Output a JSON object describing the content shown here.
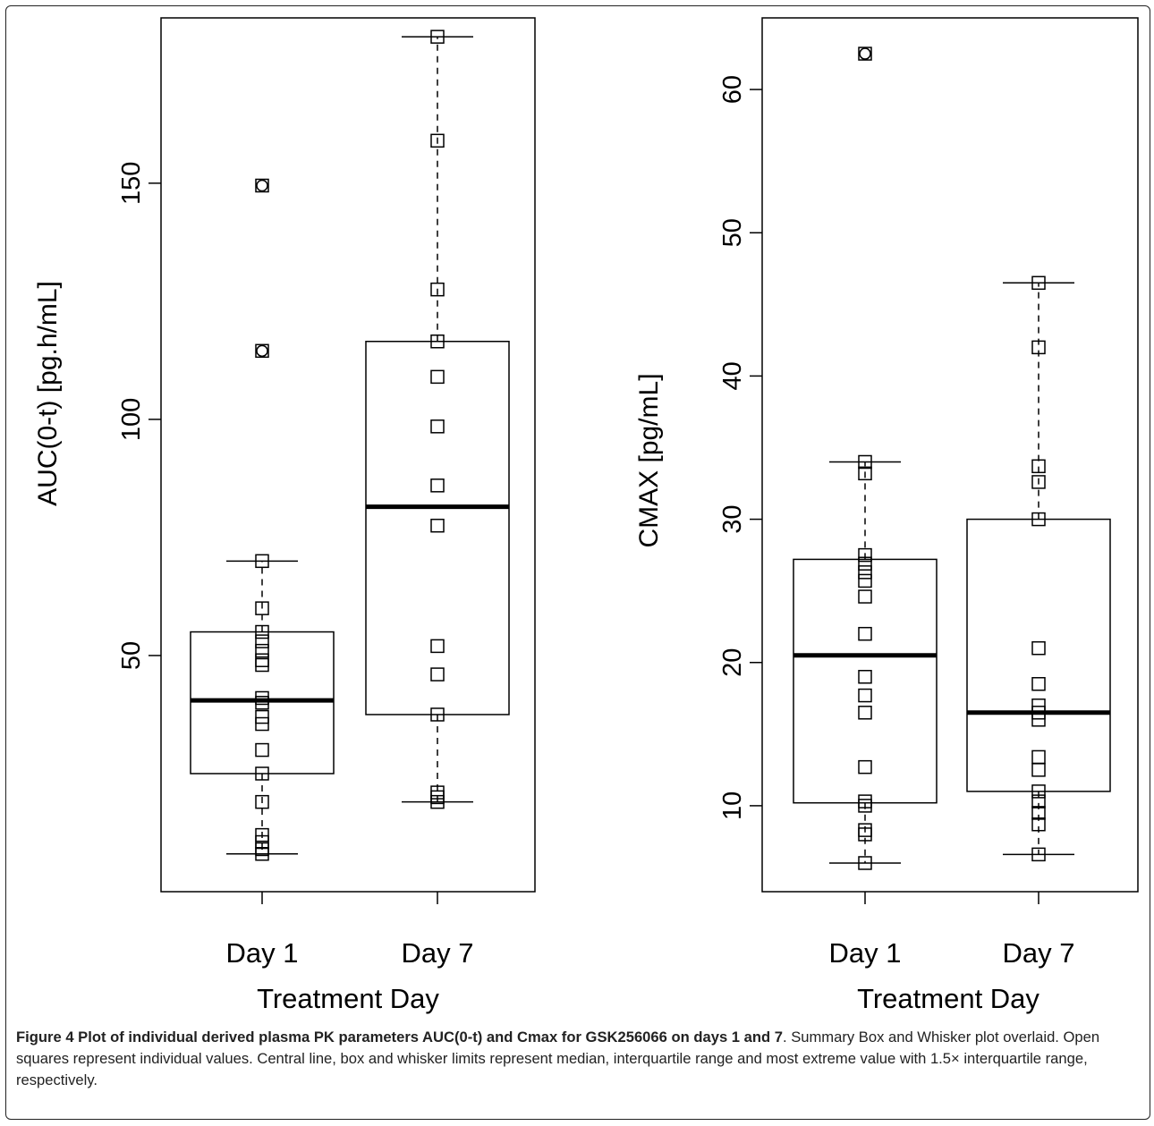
{
  "chart_data": [
    {
      "type": "box",
      "ylabel": "AUC(0-t) [pg.h/mL]",
      "xlabel": "Treatment Day",
      "categories": [
        "Day 1",
        "Day 7"
      ],
      "ylim": [
        0,
        185
      ],
      "yticks": [
        50,
        100,
        150
      ],
      "boxes": [
        {
          "category": "Day 1",
          "whisker_low": 8,
          "q1": 25,
          "median": 40.5,
          "q3": 55,
          "whisker_high": 70,
          "points": [
            8,
            9,
            10.5,
            12,
            19,
            25,
            30,
            35.5,
            37,
            40,
            41,
            48,
            49,
            51,
            53,
            55,
            60,
            70
          ],
          "outliers": [
            114.5,
            149.5
          ]
        },
        {
          "category": "Day 7",
          "whisker_low": 19,
          "q1": 37.5,
          "median": 81.5,
          "q3": 116.5,
          "whisker_high": 181,
          "points": [
            19,
            20,
            21,
            37.5,
            46,
            52,
            77.5,
            86,
            98.5,
            109,
            116.5,
            127.5,
            159,
            181
          ],
          "outliers": []
        }
      ]
    },
    {
      "type": "box",
      "ylabel": "CMAX [pg/mL]",
      "xlabel": "Treatment Day",
      "categories": [
        "Day 1",
        "Day 7"
      ],
      "ylim": [
        4,
        65
      ],
      "yticks": [
        10,
        20,
        30,
        40,
        50,
        60
      ],
      "boxes": [
        {
          "category": "Day 1",
          "whisker_low": 6,
          "q1": 10.2,
          "median": 20.5,
          "q3": 27.2,
          "whisker_high": 34,
          "points": [
            6,
            8,
            8.3,
            10,
            10.3,
            12.7,
            16.5,
            17.7,
            19,
            22,
            24.6,
            25.7,
            26.3,
            26.9,
            27.5,
            33.2,
            34
          ],
          "outliers": [
            62.5
          ]
        },
        {
          "category": "Day 7",
          "whisker_low": 6.6,
          "q1": 11,
          "median": 16.5,
          "q3": 30,
          "whisker_high": 46.5,
          "points": [
            6.6,
            8.7,
            9.5,
            10.3,
            11,
            12.5,
            13.4,
            16,
            16.5,
            17,
            18.5,
            21,
            30,
            32.6,
            33.7,
            42,
            46.5
          ],
          "outliers": []
        }
      ]
    }
  ],
  "caption": {
    "label": "Figure 4 Plot of individual derived plasma PK parameters AUC(0-t) and Cmax for GSK256066 on days 1 and 7",
    "text": ". Summary Box and Whisker plot overlaid. Open squares represent individual values. Central line, box and whisker limits represent median, interquartile range and most extreme value with 1.5× interquartile range, respectively."
  }
}
